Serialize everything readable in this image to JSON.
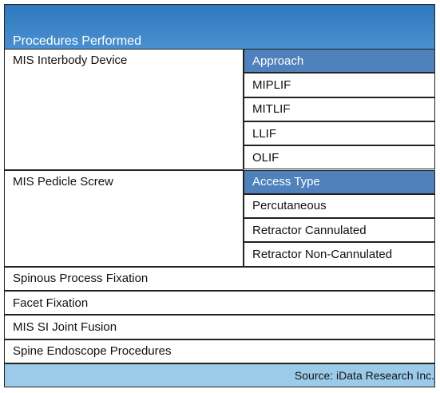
{
  "header": {
    "title": "Procedures Performed"
  },
  "table": {
    "rows": [
      {
        "label": "MIS Interbody Device",
        "sub_header": "Approach",
        "items": [
          "MIPLIF",
          "MITLIF",
          "LLIF",
          "OLIF"
        ]
      },
      {
        "label": "MIS Pedicle Screw",
        "sub_header": "Access Type",
        "items": [
          "Percutaneous",
          "Retractor Cannulated",
          "Retractor Non-Cannulated"
        ]
      },
      {
        "label": "Spinous Process Fixation"
      },
      {
        "label": "Facet Fixation"
      },
      {
        "label": "MIS SI Joint Fusion"
      },
      {
        "label": "Spine Endoscope Procedures"
      }
    ]
  },
  "footer": {
    "source": "Source: iData Research Inc."
  }
}
